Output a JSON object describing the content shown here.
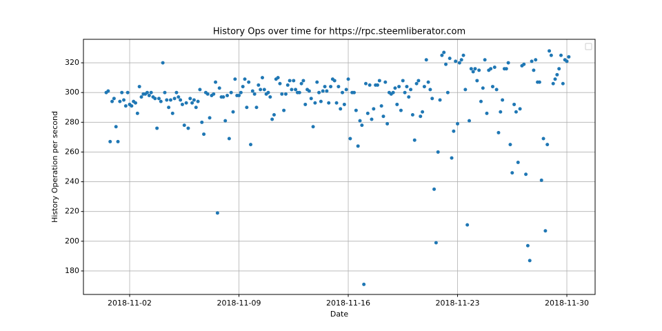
{
  "chart_data": {
    "type": "scatter",
    "title": "History Ops over time for https://rpc.steemliberator.com",
    "x_label": "Date",
    "y_label": "History Operation per second",
    "color": "#1f77b4",
    "grid": true,
    "xlim": [
      -0.96,
      31.81
    ],
    "ylim": [
      164.2,
      335.8
    ],
    "xticks": [
      {
        "value": 2,
        "label": "2018-11-02"
      },
      {
        "value": 9,
        "label": "2018-11-09"
      },
      {
        "value": 16,
        "label": "2018-11-16"
      },
      {
        "value": 23,
        "label": "2018-11-23"
      },
      {
        "value": 30,
        "label": "2018-11-30"
      }
    ],
    "yticks": [
      180,
      200,
      220,
      240,
      260,
      280,
      300,
      320
    ],
    "x": [
      0.5,
      0.625,
      0.75,
      0.875,
      1,
      1.125,
      1.25,
      1.375,
      1.5,
      1.625,
      1.75,
      1.875,
      2,
      2.125,
      2.25,
      2.375,
      2.5,
      2.625,
      2.75,
      2.875,
      3,
      3.125,
      3.25,
      3.375,
      3.5,
      3.625,
      3.75,
      3.875,
      4,
      4.125,
      4.25,
      4.375,
      4.5,
      4.625,
      4.75,
      4.875,
      5,
      5.125,
      5.25,
      5.375,
      5.5,
      5.625,
      5.75,
      5.875,
      6,
      6.125,
      6.25,
      6.375,
      6.5,
      6.625,
      6.75,
      6.875,
      7,
      7.125,
      7.25,
      7.375,
      7.5,
      7.625,
      7.75,
      7.875,
      8,
      8.125,
      8.25,
      8.375,
      8.5,
      8.625,
      8.75,
      8.875,
      9,
      9.125,
      9.25,
      9.375,
      9.5,
      9.625,
      9.75,
      9.875,
      10,
      10.125,
      10.25,
      10.375,
      10.5,
      10.625,
      10.75,
      10.875,
      11,
      11.125,
      11.25,
      11.375,
      11.5,
      11.625,
      11.75,
      11.875,
      12,
      12.125,
      12.25,
      12.375,
      12.5,
      12.625,
      12.75,
      12.875,
      13,
      13.125,
      13.25,
      13.375,
      13.5,
      13.625,
      13.75,
      13.875,
      14,
      14.125,
      14.25,
      14.375,
      14.5,
      14.625,
      14.75,
      14.875,
      15,
      15.125,
      15.25,
      15.375,
      15.5,
      15.625,
      15.75,
      15.875,
      16,
      16.125,
      16.25,
      16.375,
      16.5,
      16.625,
      16.75,
      16.875,
      17,
      17.125,
      17.25,
      17.375,
      17.5,
      17.625,
      17.75,
      17.875,
      18,
      18.125,
      18.25,
      18.375,
      18.5,
      18.625,
      18.75,
      18.875,
      19,
      19.125,
      19.25,
      19.375,
      19.5,
      19.625,
      19.75,
      19.875,
      20,
      20.125,
      20.25,
      20.375,
      20.5,
      20.625,
      20.75,
      20.875,
      21,
      21.125,
      21.25,
      21.375,
      21.5,
      21.625,
      21.75,
      21.875,
      22,
      22.125,
      22.25,
      22.375,
      22.5,
      22.625,
      22.75,
      22.875,
      23,
      23.125,
      23.25,
      23.375,
      23.5,
      23.625,
      23.75,
      23.875,
      24,
      24.125,
      24.25,
      24.375,
      24.5,
      24.625,
      24.75,
      24.875,
      25,
      25.125,
      25.25,
      25.375,
      25.5,
      25.625,
      25.75,
      25.875,
      26,
      26.125,
      26.25,
      26.375,
      26.5,
      26.625,
      26.75,
      26.875,
      27,
      27.125,
      27.25,
      27.375,
      27.5,
      27.625,
      27.75,
      27.875,
      28,
      28.125,
      28.25,
      28.375,
      28.5,
      28.625,
      28.75,
      28.875,
      29,
      29.125,
      29.25,
      29.375,
      29.5,
      29.625,
      29.75,
      29.875,
      30,
      30.125
    ],
    "values": [
      300,
      301,
      267,
      294,
      296,
      277,
      267,
      294,
      300,
      295,
      291,
      300,
      292,
      291,
      294,
      293,
      286,
      304,
      297,
      299,
      299,
      300,
      298,
      300,
      297,
      296,
      276,
      296,
      294,
      320,
      300,
      295,
      290,
      295,
      286,
      296,
      300,
      297,
      295,
      292,
      278,
      293,
      276,
      296,
      293,
      295,
      290,
      294,
      302,
      280,
      272,
      300,
      299,
      283,
      298,
      299,
      307,
      219,
      303,
      297,
      297,
      281,
      298,
      269,
      300,
      287,
      309,
      298,
      298,
      300,
      304,
      309,
      290,
      307,
      265,
      301,
      299,
      290,
      305,
      302,
      310,
      302,
      299,
      300,
      297,
      282,
      285,
      309,
      310,
      306,
      299,
      288,
      299,
      305,
      308,
      302,
      308,
      302,
      300,
      300,
      306,
      308,
      292,
      302,
      301,
      296,
      277,
      293,
      307,
      300,
      294,
      301,
      304,
      301,
      293,
      304,
      309,
      308,
      293,
      304,
      289,
      300,
      292,
      302,
      309,
      269,
      300,
      300,
      288,
      264,
      281,
      278,
      171,
      306,
      286,
      305,
      282,
      289,
      305,
      305,
      308,
      291,
      284,
      307,
      279,
      300,
      299,
      300,
      303,
      292,
      304,
      288,
      308,
      300,
      304,
      297,
      302,
      285,
      268,
      306,
      308,
      284,
      287,
      304,
      322,
      307,
      302,
      296,
      235,
      199,
      260,
      295,
      325,
      327,
      319,
      300,
      323,
      256,
      274,
      321,
      279,
      320,
      322,
      325,
      302,
      211,
      281,
      316,
      314,
      316,
      308,
      315,
      294,
      303,
      322,
      286,
      315,
      316,
      304,
      317,
      302,
      273,
      287,
      295,
      316,
      316,
      320,
      265,
      246,
      292,
      287,
      253,
      289,
      318,
      319,
      245,
      197,
      187,
      321,
      315,
      322,
      307,
      307,
      241,
      269,
      207,
      265,
      328,
      325,
      306,
      309,
      312,
      316,
      325,
      306,
      322,
      321,
      324
    ]
  }
}
